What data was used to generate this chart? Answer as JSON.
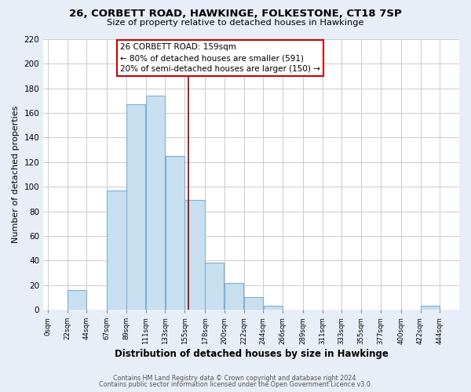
{
  "title": "26, CORBETT ROAD, HAWKINGE, FOLKESTONE, CT18 7SP",
  "subtitle": "Size of property relative to detached houses in Hawkinge",
  "xlabel": "Distribution of detached houses by size in Hawkinge",
  "ylabel": "Number of detached properties",
  "bar_left_edges": [
    0,
    22,
    44,
    67,
    89,
    111,
    133,
    155,
    178,
    200,
    222,
    244,
    266,
    289,
    311,
    333,
    355,
    377,
    400,
    422
  ],
  "bar_heights": [
    0,
    16,
    0,
    97,
    167,
    174,
    125,
    89,
    38,
    22,
    10,
    3,
    0,
    0,
    0,
    0,
    0,
    0,
    0,
    3
  ],
  "bar_widths": [
    22,
    22,
    23,
    22,
    22,
    22,
    22,
    23,
    22,
    22,
    22,
    22,
    23,
    22,
    22,
    22,
    22,
    23,
    22,
    22
  ],
  "bar_color": "#c8dff0",
  "bar_edge_color": "#7bafd4",
  "vline_x": 159,
  "vline_color": "#8b0000",
  "annotation_title": "26 CORBETT ROAD: 159sqm",
  "annotation_line1": "← 80% of detached houses are smaller (591)",
  "annotation_line2": "20% of semi-detached houses are larger (150) →",
  "tick_labels": [
    "0sqm",
    "22sqm",
    "44sqm",
    "67sqm",
    "89sqm",
    "111sqm",
    "133sqm",
    "155sqm",
    "178sqm",
    "200sqm",
    "222sqm",
    "244sqm",
    "266sqm",
    "289sqm",
    "311sqm",
    "333sqm",
    "355sqm",
    "377sqm",
    "400sqm",
    "422sqm",
    "444sqm"
  ],
  "tick_positions": [
    0,
    22,
    44,
    67,
    89,
    111,
    133,
    155,
    178,
    200,
    222,
    244,
    266,
    289,
    311,
    333,
    355,
    377,
    400,
    422,
    444
  ],
  "ylim": [
    0,
    220
  ],
  "xlim": [
    -5,
    466
  ],
  "yticks": [
    0,
    20,
    40,
    60,
    80,
    100,
    120,
    140,
    160,
    180,
    200,
    220
  ],
  "footer1": "Contains HM Land Registry data © Crown copyright and database right 2024.",
  "footer2": "Contains public sector information licensed under the Open Government Licence v3.0.",
  "bg_color": "#e8eef8",
  "plot_bg_color": "#ffffff",
  "grid_color": "#cccccc"
}
